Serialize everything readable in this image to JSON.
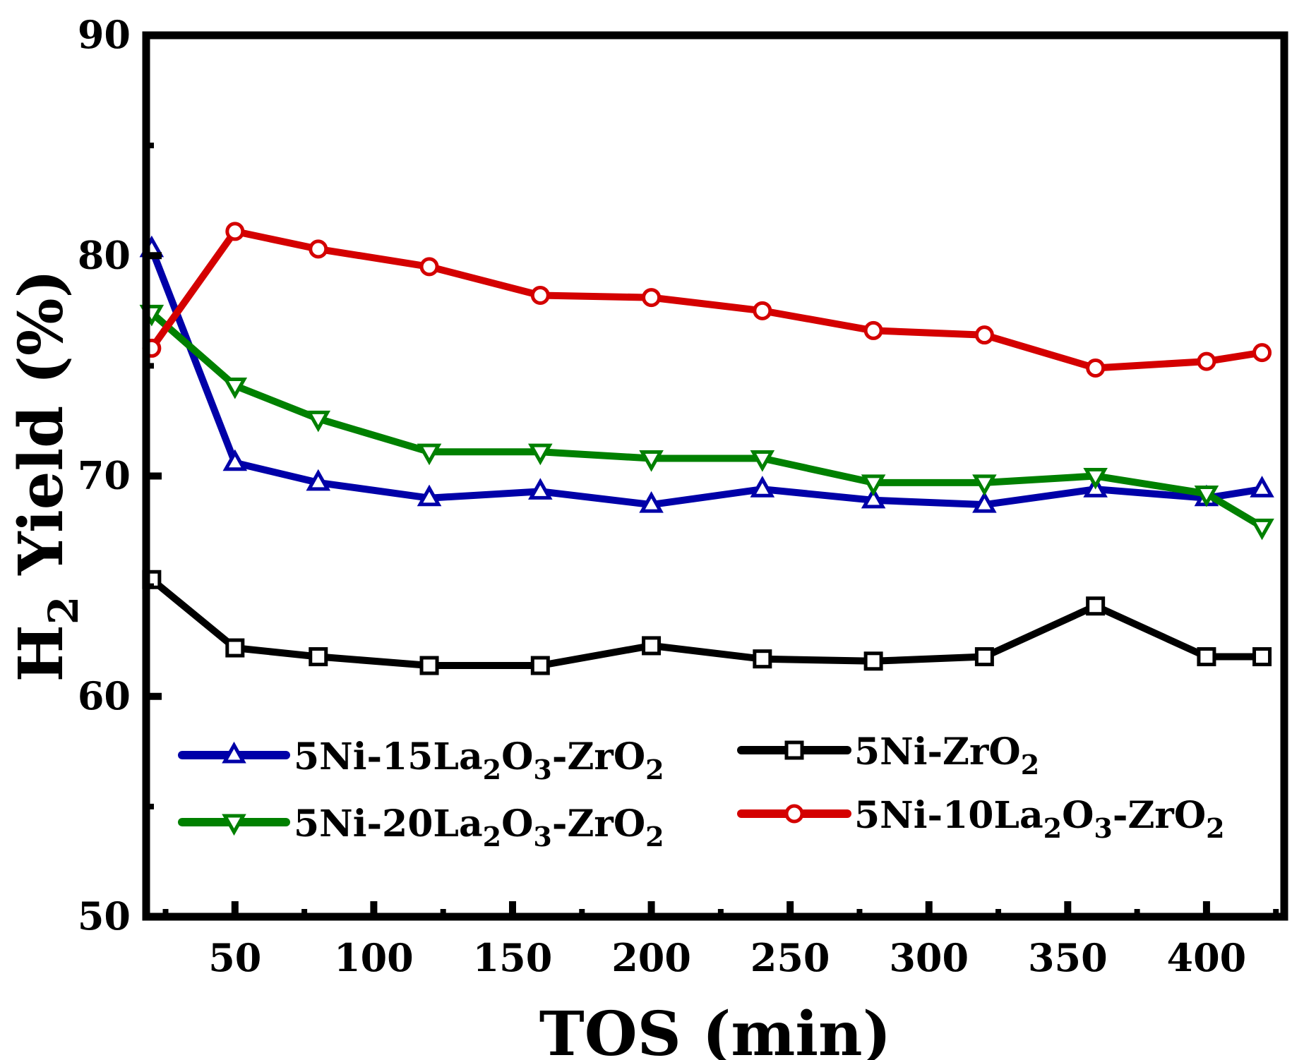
{
  "chart_data": {
    "type": "line",
    "title": "",
    "xlabel": "TOS (min)",
    "ylabel_main": "H",
    "ylabel_sub": "2",
    "ylabel_rest": " Yield (%)",
    "xlim": [
      18,
      428
    ],
    "ylim": [
      50,
      90
    ],
    "xticks": [
      50,
      100,
      150,
      200,
      250,
      300,
      350,
      400
    ],
    "yticks": [
      50,
      60,
      70,
      80,
      90
    ],
    "grid": false,
    "x": [
      20,
      50,
      80,
      120,
      160,
      200,
      240,
      280,
      320,
      360,
      400,
      420
    ],
    "series": [
      {
        "name": "5Ni-15La2O3-ZrO2",
        "label_parts": [
          [
            "5Ni-15La",
            ""
          ],
          [
            "2",
            "sub"
          ],
          [
            "O",
            ""
          ],
          [
            "3",
            "sub"
          ],
          [
            "-ZrO",
            ""
          ],
          [
            "2",
            "sub"
          ]
        ],
        "color": "#0000a8",
        "marker": "triangle-up",
        "values": [
          80.3,
          70.6,
          69.7,
          69.0,
          69.3,
          68.7,
          69.4,
          68.9,
          68.7,
          69.4,
          69.0,
          69.4
        ]
      },
      {
        "name": "5Ni-20La2O3-ZrO2",
        "label_parts": [
          [
            "5Ni-20La",
            ""
          ],
          [
            "2",
            "sub"
          ],
          [
            "O",
            ""
          ],
          [
            "3",
            "sub"
          ],
          [
            "-ZrO",
            ""
          ],
          [
            "2",
            "sub"
          ]
        ],
        "color": "#008000",
        "marker": "triangle-down",
        "values": [
          77.4,
          74.1,
          72.6,
          71.1,
          71.1,
          70.8,
          70.8,
          69.7,
          69.7,
          70.0,
          69.2,
          67.7
        ]
      },
      {
        "name": "5Ni-ZrO2",
        "label_parts": [
          [
            "5Ni-ZrO",
            ""
          ],
          [
            "2",
            "sub"
          ]
        ],
        "color": "#000000",
        "marker": "square",
        "values": [
          65.3,
          62.2,
          61.8,
          61.4,
          61.4,
          62.3,
          61.7,
          61.6,
          61.8,
          64.1,
          61.8,
          61.8
        ]
      },
      {
        "name": "5Ni-10La2O3-ZrO2",
        "label_parts": [
          [
            "5Ni-10La",
            ""
          ],
          [
            "2",
            "sub"
          ],
          [
            "O",
            ""
          ],
          [
            "3",
            "sub"
          ],
          [
            "-ZrO",
            ""
          ],
          [
            "2",
            "sub"
          ]
        ],
        "color": "#d40000",
        "marker": "circle",
        "values": [
          75.8,
          81.1,
          80.3,
          79.5,
          78.2,
          78.1,
          77.5,
          76.6,
          76.4,
          74.9,
          75.2,
          75.6
        ]
      }
    ],
    "legend_position": "lower-middle, two columns"
  }
}
